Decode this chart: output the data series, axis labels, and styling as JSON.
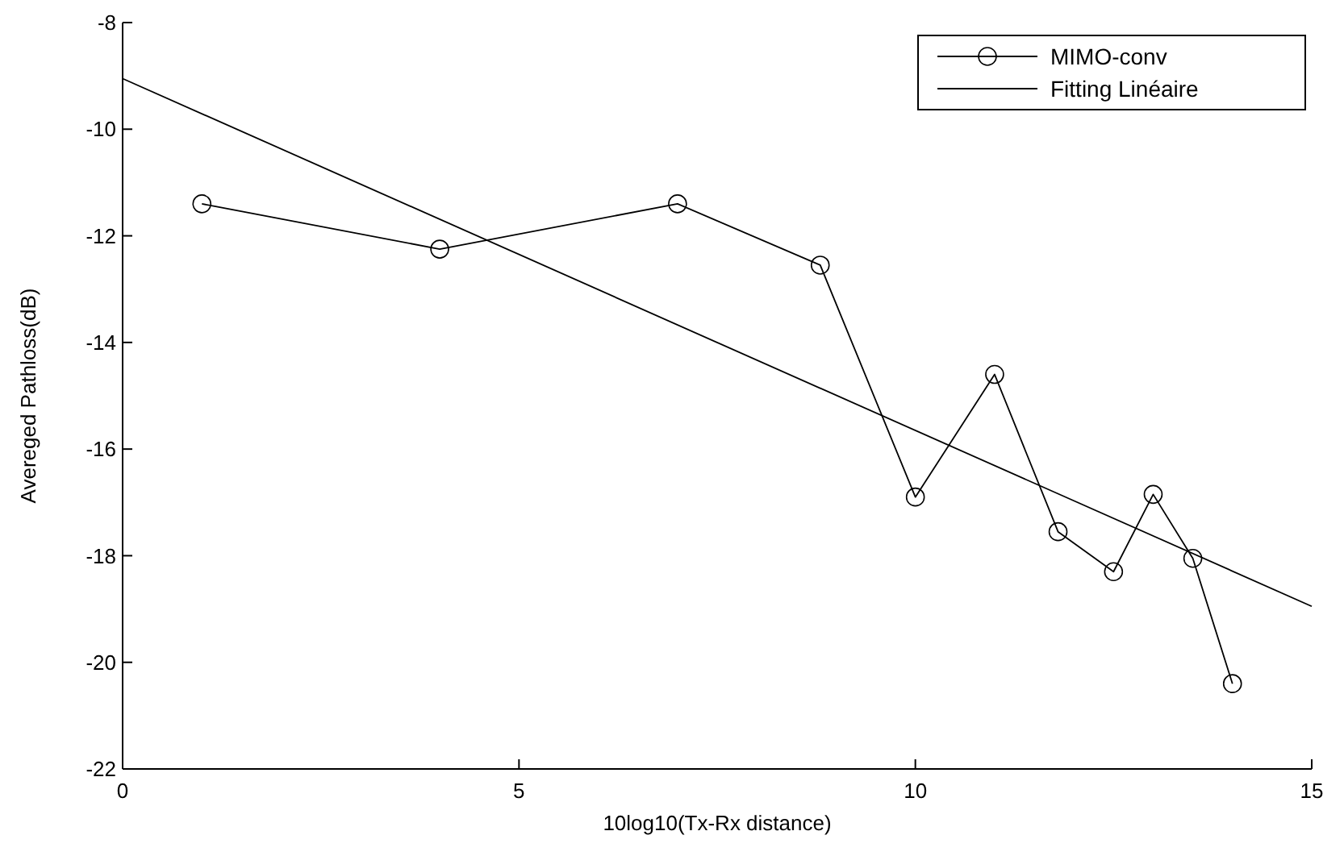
{
  "chart_data": {
    "type": "line",
    "xlabel": "10log10(Tx-Rx distance)",
    "ylabel": "Avereged Pathloss(dB)",
    "xlim": [
      0,
      15
    ],
    "xticks": [
      0,
      5,
      10,
      15
    ],
    "ylim": [
      -22,
      -8
    ],
    "yticks": [
      -22,
      -20,
      -18,
      -16,
      -14,
      -12,
      -10,
      -8
    ],
    "grid": false,
    "legend": "top right",
    "series": [
      {
        "name": "MIMO-conv",
        "color": "#000000",
        "marker": "circle",
        "x": [
          1,
          4,
          7,
          8.8,
          10,
          11,
          11.8,
          12.5,
          13,
          13.5,
          14
        ],
        "values": [
          -11.4,
          -12.25,
          -11.4,
          -12.55,
          -16.9,
          -14.6,
          -17.55,
          -18.3,
          -16.85,
          -18.05,
          -20.4
        ]
      },
      {
        "name": "Fitting Linéaire",
        "type": "line",
        "color": "#000000",
        "marker": "none",
        "x": [
          0,
          15
        ],
        "values": [
          -9.05,
          -18.95
        ]
      }
    ]
  }
}
